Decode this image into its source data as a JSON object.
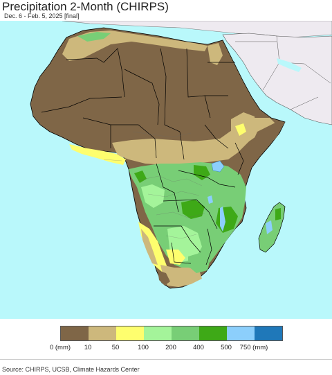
{
  "header": {
    "title": "Precipitation 2-Month (CHIRPS)",
    "subtitle": "Dec. 6 - Feb. 5, 2025 [final]"
  },
  "legend": {
    "items": [
      {
        "label": "0 (mm)",
        "color": "#7f6647"
      },
      {
        "label": "10",
        "color": "#cdb87c"
      },
      {
        "label": "50",
        "color": "#fefe6e"
      },
      {
        "label": "100",
        "color": "#a4f49a"
      },
      {
        "label": "200",
        "color": "#78ce76"
      },
      {
        "label": "400",
        "color": "#3ea917"
      },
      {
        "label": "500",
        "color": "#8ccffc"
      },
      {
        "label": "750 (mm)",
        "color": "#1f78b9"
      }
    ]
  },
  "footer": {
    "source": "Source: CHIRPS, UCSB, Climate Hazards Center"
  },
  "colors": {
    "ocean": "#b9f8fb",
    "outside_region": "#eeeaf0",
    "border": "#000000"
  }
}
